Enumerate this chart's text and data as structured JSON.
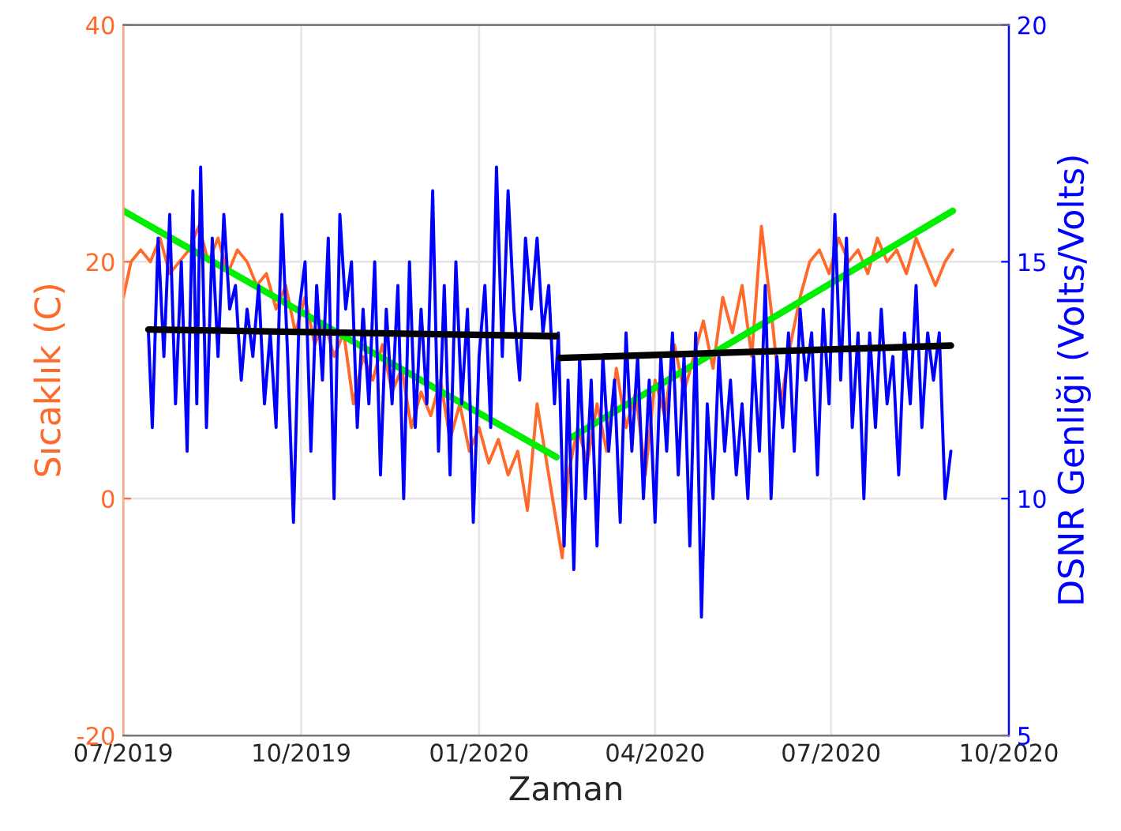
{
  "chart_data": {
    "type": "line",
    "xlabel": "Zaman",
    "ylabel": "Sıcaklık (C)",
    "y2label": "DSNR Genliği (Volts/Volts)",
    "xlim": [
      "2019-07-01",
      "2020-10-01"
    ],
    "xticks": [
      {
        "value": "2019-07-01",
        "label": "07/2019"
      },
      {
        "value": "2019-10-01",
        "label": "10/2019"
      },
      {
        "value": "2020-01-01",
        "label": "01/2020"
      },
      {
        "value": "2020-04-01",
        "label": "04/2020"
      },
      {
        "value": "2020-07-01",
        "label": "07/2020"
      },
      {
        "value": "2020-10-01",
        "label": "10/2020"
      }
    ],
    "ylim": [
      -20,
      40
    ],
    "yticks": [
      -20,
      0,
      20,
      40
    ],
    "y2lim": [
      5,
      20
    ],
    "y2ticks": [
      5,
      10,
      15,
      20
    ],
    "grid": true,
    "legend": false,
    "marker": "none",
    "line_style": "solid",
    "series": [
      {
        "color": "#ff6a2a",
        "axis": "y",
        "x": [
          "2019-07-01",
          "2019-07-05",
          "2019-07-10",
          "2019-07-15",
          "2019-07-20",
          "2019-07-25",
          "2019-07-30",
          "2019-08-04",
          "2019-08-09",
          "2019-08-14",
          "2019-08-19",
          "2019-08-24",
          "2019-08-29",
          "2019-09-03",
          "2019-09-08",
          "2019-09-13",
          "2019-09-18",
          "2019-09-23",
          "2019-09-28",
          "2019-10-03",
          "2019-10-08",
          "2019-10-13",
          "2019-10-18",
          "2019-10-23",
          "2019-10-28",
          "2019-11-02",
          "2019-11-07",
          "2019-11-12",
          "2019-11-17",
          "2019-11-22",
          "2019-11-27",
          "2019-12-02",
          "2019-12-07",
          "2019-12-12",
          "2019-12-17",
          "2019-12-22",
          "2019-12-27",
          "2020-01-01",
          "2020-01-06",
          "2020-01-11",
          "2020-01-16",
          "2020-01-21",
          "2020-01-26",
          "2020-01-31",
          "2020-02-05",
          "2020-02-10",
          "2020-02-13",
          "2020-02-16",
          "2020-02-21",
          "2020-02-26",
          "2020-03-02",
          "2020-03-07",
          "2020-03-12",
          "2020-03-17",
          "2020-03-22",
          "2020-03-27",
          "2020-04-01",
          "2020-04-06",
          "2020-04-11",
          "2020-04-16",
          "2020-04-21",
          "2020-04-26",
          "2020-05-01",
          "2020-05-06",
          "2020-05-11",
          "2020-05-16",
          "2020-05-21",
          "2020-05-26",
          "2020-05-31",
          "2020-06-05",
          "2020-06-10",
          "2020-06-15",
          "2020-06-20",
          "2020-06-25",
          "2020-06-30",
          "2020-07-05",
          "2020-07-10",
          "2020-07-15",
          "2020-07-20",
          "2020-07-25",
          "2020-07-30",
          "2020-08-04",
          "2020-08-09",
          "2020-08-14",
          "2020-08-19",
          "2020-08-24",
          "2020-08-29",
          "2020-09-02"
        ],
        "values": [
          17,
          20,
          21,
          20,
          22,
          19,
          20,
          21,
          23,
          20,
          22,
          19,
          21,
          20,
          18,
          19,
          16,
          18,
          14,
          17,
          13,
          15,
          12,
          14,
          8,
          12,
          10,
          13,
          9,
          11,
          6,
          9,
          7,
          10,
          5,
          8,
          4,
          6,
          3,
          5,
          2,
          4,
          -1,
          8,
          3,
          -2,
          -5,
          2,
          6,
          3,
          8,
          4,
          11,
          6,
          9,
          2,
          10,
          7,
          13,
          9,
          12,
          15,
          11,
          17,
          14,
          18,
          12,
          23,
          16,
          8,
          13,
          17,
          20,
          21,
          19,
          22,
          20,
          21,
          19,
          22,
          20,
          21,
          19,
          22,
          20,
          18,
          20,
          21
        ]
      },
      {
        "color": "#0000ff",
        "axis": "y2",
        "x": [
          "2019-07-14",
          "2019-07-16",
          "2019-07-19",
          "2019-07-22",
          "2019-07-25",
          "2019-07-28",
          "2019-07-31",
          "2019-08-03",
          "2019-08-06",
          "2019-08-08",
          "2019-08-10",
          "2019-08-13",
          "2019-08-16",
          "2019-08-19",
          "2019-08-22",
          "2019-08-25",
          "2019-08-28",
          "2019-08-31",
          "2019-09-03",
          "2019-09-06",
          "2019-09-09",
          "2019-09-12",
          "2019-09-15",
          "2019-09-18",
          "2019-09-21",
          "2019-09-24",
          "2019-09-27",
          "2019-09-30",
          "2019-10-03",
          "2019-10-06",
          "2019-10-09",
          "2019-10-12",
          "2019-10-15",
          "2019-10-18",
          "2019-10-21",
          "2019-10-24",
          "2019-10-27",
          "2019-10-30",
          "2019-11-02",
          "2019-11-05",
          "2019-11-08",
          "2019-11-11",
          "2019-11-14",
          "2019-11-17",
          "2019-11-20",
          "2019-11-23",
          "2019-11-26",
          "2019-11-29",
          "2019-12-02",
          "2019-12-05",
          "2019-12-08",
          "2019-12-11",
          "2019-12-14",
          "2019-12-17",
          "2019-12-20",
          "2019-12-23",
          "2019-12-26",
          "2019-12-29",
          "2020-01-01",
          "2020-01-04",
          "2020-01-07",
          "2020-01-10",
          "2020-01-13",
          "2020-01-16",
          "2020-01-19",
          "2020-01-22",
          "2020-01-25",
          "2020-01-28",
          "2020-01-31",
          "2020-02-03",
          "2020-02-06",
          "2020-02-09",
          "2020-02-11",
          "2020-02-14",
          "2020-02-16",
          "2020-02-19",
          "2020-02-22",
          "2020-02-25",
          "2020-02-28",
          "2020-03-02",
          "2020-03-05",
          "2020-03-08",
          "2020-03-11",
          "2020-03-14",
          "2020-03-17",
          "2020-03-20",
          "2020-03-23",
          "2020-03-26",
          "2020-03-29",
          "2020-04-01",
          "2020-04-04",
          "2020-04-07",
          "2020-04-10",
          "2020-04-13",
          "2020-04-16",
          "2020-04-19",
          "2020-04-22",
          "2020-04-25",
          "2020-04-28",
          "2020-05-01",
          "2020-05-04",
          "2020-05-07",
          "2020-05-10",
          "2020-05-13",
          "2020-05-16",
          "2020-05-19",
          "2020-05-22",
          "2020-05-25",
          "2020-05-28",
          "2020-05-31",
          "2020-06-03",
          "2020-06-06",
          "2020-06-09",
          "2020-06-12",
          "2020-06-15",
          "2020-06-18",
          "2020-06-21",
          "2020-06-24",
          "2020-06-27",
          "2020-06-30",
          "2020-07-03",
          "2020-07-06",
          "2020-07-09",
          "2020-07-12",
          "2020-07-15",
          "2020-07-18",
          "2020-07-21",
          "2020-07-24",
          "2020-07-27",
          "2020-07-30",
          "2020-08-02",
          "2020-08-05",
          "2020-08-08",
          "2020-08-11",
          "2020-08-14",
          "2020-08-17",
          "2020-08-20",
          "2020-08-23",
          "2020-08-26",
          "2020-08-29",
          "2020-09-01"
        ],
        "values": [
          13.5,
          11.5,
          15.5,
          13,
          16,
          12,
          15,
          11,
          16.5,
          12,
          17,
          11.5,
          15.5,
          13,
          16,
          14,
          14.5,
          12.5,
          14,
          13,
          14.5,
          12,
          13.5,
          11.5,
          16,
          13,
          9.5,
          14,
          15,
          11,
          14.5,
          12.5,
          15.5,
          10,
          16,
          14,
          15,
          11.5,
          14,
          12,
          15,
          10.5,
          14,
          12,
          14.5,
          10,
          15,
          11.5,
          14,
          12,
          16.5,
          11,
          14.5,
          10.5,
          15,
          12,
          14,
          9.5,
          13,
          14.5,
          11.5,
          17,
          13,
          16.5,
          14,
          12.5,
          15.5,
          14,
          15.5,
          13.5,
          14.5,
          12,
          13.5,
          9,
          12.5,
          8.5,
          13,
          10,
          12.5,
          9,
          13,
          11,
          12.5,
          9.5,
          13.5,
          11,
          13,
          10,
          12.5,
          9.5,
          13,
          11,
          13.5,
          10.5,
          13,
          9,
          13.5,
          7.5,
          12,
          10,
          13,
          11,
          12.5,
          10.5,
          12,
          10,
          13,
          11,
          14.5,
          10,
          13,
          11.5,
          13.5,
          11,
          14,
          12.5,
          13.5,
          10.5,
          14,
          12,
          16,
          12.5,
          15.5,
          11.5,
          13.5,
          10,
          13.5,
          11.5,
          14,
          12,
          13,
          10.5,
          13.5,
          12,
          14.5,
          11.5,
          13.5,
          12.5,
          13.5,
          10,
          11
        ]
      },
      {
        "color": "#00ee00",
        "axis": "y",
        "x": [
          "2019-07-01",
          "2020-02-10"
        ],
        "values": [
          24.3,
          3.5
        ]
      },
      {
        "color": "#00ee00",
        "axis": "y",
        "x": [
          "2020-02-17",
          "2020-09-02"
        ],
        "values": [
          5.1,
          24.3
        ]
      },
      {
        "color": "#000000",
        "axis": "y2",
        "x": [
          "2019-07-14",
          "2020-02-10"
        ],
        "values": [
          13.57,
          13.43
        ]
      },
      {
        "color": "#000000",
        "axis": "y2",
        "x": [
          "2020-02-12",
          "2020-09-01"
        ],
        "values": [
          12.97,
          13.23
        ]
      }
    ]
  }
}
